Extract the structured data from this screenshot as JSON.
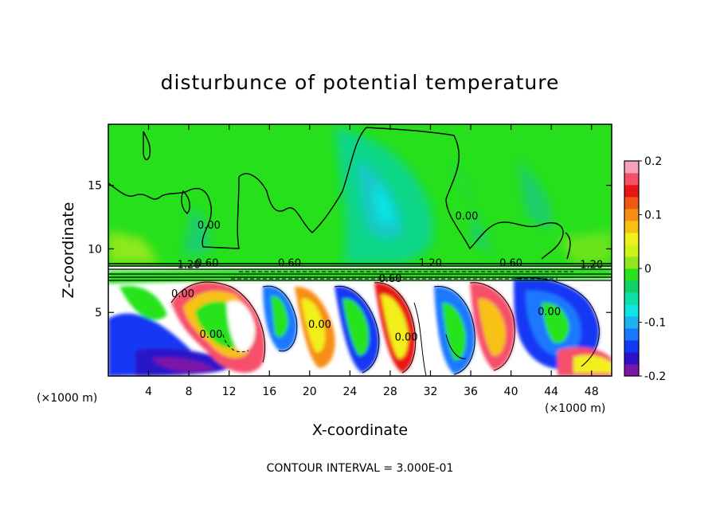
{
  "chart_data": {
    "type": "heatmap",
    "title": "disturbunce of potential temperature",
    "xlabel": "X-coordinate",
    "ylabel": "Z-coordinate",
    "x_unit_left": "(×1000 m)",
    "x_unit_right": "(×1000 m)",
    "contour_interval_text": "CONTOUR INTERVAL = 3.000E-01",
    "xlim": [
      0,
      50
    ],
    "ylim": [
      0,
      19.8
    ],
    "x_ticks": [
      4,
      8,
      12,
      16,
      20,
      24,
      28,
      32,
      36,
      40,
      44,
      48
    ],
    "x_tick_labels": [
      "4",
      "8",
      "12",
      "16",
      "20",
      "24",
      "28",
      "32",
      "36",
      "40",
      "44",
      "48"
    ],
    "y_ticks": [
      5,
      10,
      15
    ],
    "y_tick_labels": [
      "5",
      "10",
      "15"
    ],
    "colorbar": {
      "range": [
        -0.2,
        0.2
      ],
      "ticks": [
        -0.2,
        -0.1,
        0,
        0.1,
        0.2
      ],
      "tick_labels": [
        "-0.2",
        "-0.1",
        "0",
        "0.1",
        "0.2"
      ],
      "colors": [
        "#7b17a8",
        "#2c12c9",
        "#1238f4",
        "#1a78ff",
        "#1fb2f0",
        "#0ee6e6",
        "#0de0a8",
        "#10d266",
        "#26e31c",
        "#8ee81b",
        "#cef21a",
        "#f2f01a",
        "#f7c112",
        "#f78d12",
        "#f25612",
        "#ea1414",
        "#f5506a",
        "#f7a0b8"
      ]
    },
    "contour_labels": [
      {
        "text": "0.00",
        "x": 10.0,
        "y": 11.6
      },
      {
        "text": "0.00",
        "x": 35.6,
        "y": 12.3
      },
      {
        "text": "1.20",
        "x": 8.0,
        "y": 8.5
      },
      {
        "text": "0.60",
        "x": 9.8,
        "y": 8.6
      },
      {
        "text": "0.60",
        "x": 18.0,
        "y": 8.6
      },
      {
        "text": "1.20",
        "x": 32.0,
        "y": 8.6
      },
      {
        "text": "0.60",
        "x": 40.0,
        "y": 8.6
      },
      {
        "text": "1.20",
        "x": 48.0,
        "y": 8.5
      },
      {
        "text": "0.60",
        "x": 28.0,
        "y": 7.4
      },
      {
        "text": "0.00",
        "x": 7.4,
        "y": 6.2
      },
      {
        "text": "0.00",
        "x": 10.2,
        "y": 3.0
      },
      {
        "text": "0.00",
        "x": 21.0,
        "y": 3.8
      },
      {
        "text": "0.00",
        "x": 29.6,
        "y": 2.8
      },
      {
        "text": "0.00",
        "x": 43.8,
        "y": 4.8
      }
    ]
  }
}
